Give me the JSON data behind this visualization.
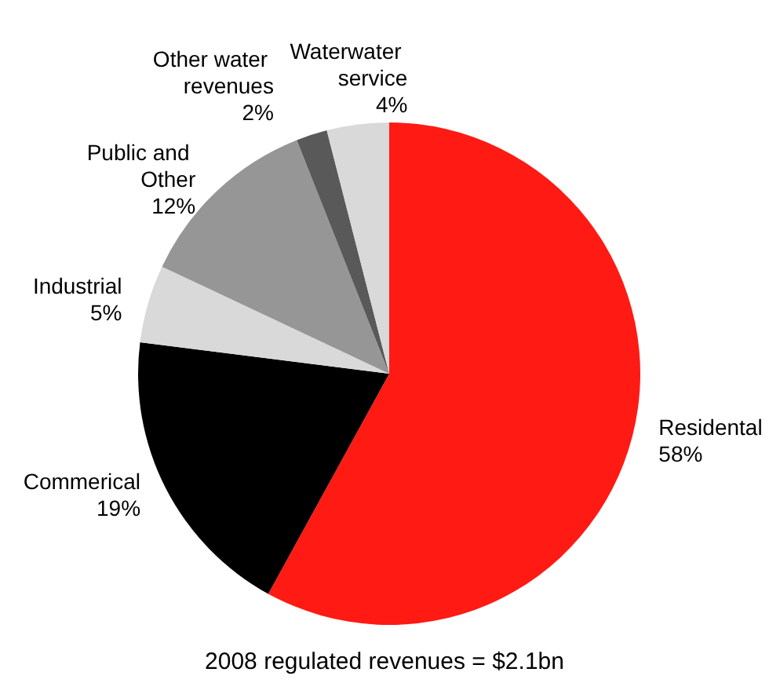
{
  "chart_data": {
    "type": "pie",
    "categories": [
      "Residental",
      "Commerical",
      "Industrial",
      "Public and Other",
      "Other water revenues",
      "Waterwater service"
    ],
    "values": [
      58,
      19,
      5,
      12,
      2,
      4
    ],
    "colors": [
      "#ff1a14",
      "#000000",
      "#d9d9d9",
      "#969696",
      "#595959",
      "#d9d9d9"
    ],
    "value_labels": [
      "58%",
      "19%",
      "5%",
      "12%",
      "2%",
      "4%"
    ],
    "annotations": [
      "2008 regulated revenues = $2.1bn"
    ],
    "legend": false
  }
}
